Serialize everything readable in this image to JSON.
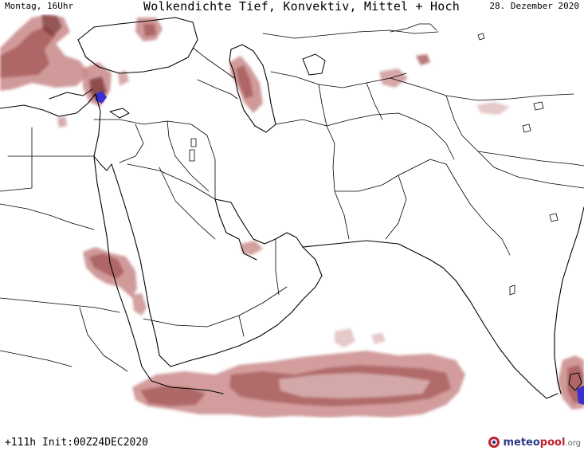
{
  "header": {
    "day_time": "Montag, 16Uhr",
    "title": "Wolkendichte  Tief, Konvektiv, Mittel + Hoch",
    "date": "28. Dezember 2020"
  },
  "footer": {
    "run_info": "+111h Init:00Z24DEC2020"
  },
  "logo": {
    "brand_primary": "meteo",
    "brand_secondary": "pool",
    "suffix": ".org"
  },
  "colors": {
    "cloud_light": "#e3c3c3",
    "cloud_medium": "#c98888",
    "cloud_dense": "#a85a5a",
    "cloud_very_dense": "#7e3a3a",
    "highest_density": "#3b2fd0",
    "borders": "#000000",
    "background": "#ffffff"
  }
}
